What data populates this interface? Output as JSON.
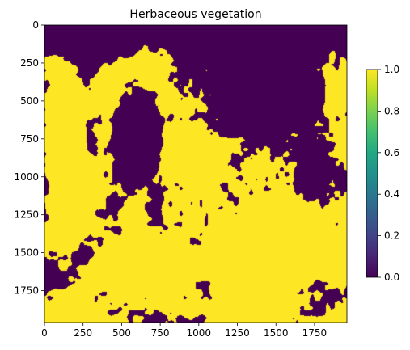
{
  "chart_data": {
    "type": "heatmap",
    "title": "Herbaceous vegetation",
    "xlabel": "",
    "ylabel": "",
    "xlim": [
      0,
      1960
    ],
    "ylim": [
      1960,
      0
    ],
    "x_ticks": [
      0,
      250,
      500,
      750,
      1000,
      1250,
      1500,
      1750
    ],
    "y_ticks": [
      0,
      250,
      500,
      750,
      1000,
      1250,
      1500,
      1750
    ],
    "colormap": "viridis",
    "color_range": [
      0,
      1
    ],
    "colorbar_ticks": [
      "0.0",
      "0.2",
      "0.4",
      "0.6",
      "0.8",
      "1.0"
    ],
    "colors": {
      "low": "#440154",
      "high": "#fde725"
    },
    "grid": false,
    "description": "Binary raster (values 0 and 1). Value 1 (yellow) dominates the left edge, center and lower-right; value 0 (purple) dominates the top band, a large block near x 400-650 / y 300-1000, and the upper-right region."
  }
}
